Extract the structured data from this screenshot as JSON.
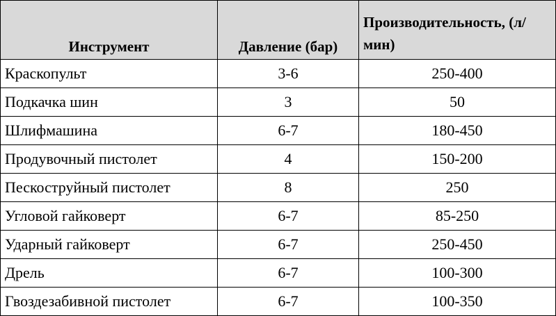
{
  "table": {
    "header": [
      "Инструмент",
      "Давление (бар)",
      "Производительность, (л/мин)"
    ],
    "rows": [
      [
        "Краскопульт",
        "3-6",
        "250-400"
      ],
      [
        "Подкачка шин",
        "3",
        "50"
      ],
      [
        "Шлифмашина",
        "6-7",
        "180-450"
      ],
      [
        "Продувочный пистолет",
        "4",
        "150-200"
      ],
      [
        "Пескоструйный пистолет",
        "8",
        "250"
      ],
      [
        "Угловой гайковерт",
        "6-7",
        "85-250"
      ],
      [
        "Ударный гайковерт",
        "6-7",
        "250-450"
      ],
      [
        "Дрель",
        "6-7",
        "100-300"
      ],
      [
        "Гвоздезабивной пистолет",
        "6-7",
        "100-350"
      ]
    ]
  }
}
